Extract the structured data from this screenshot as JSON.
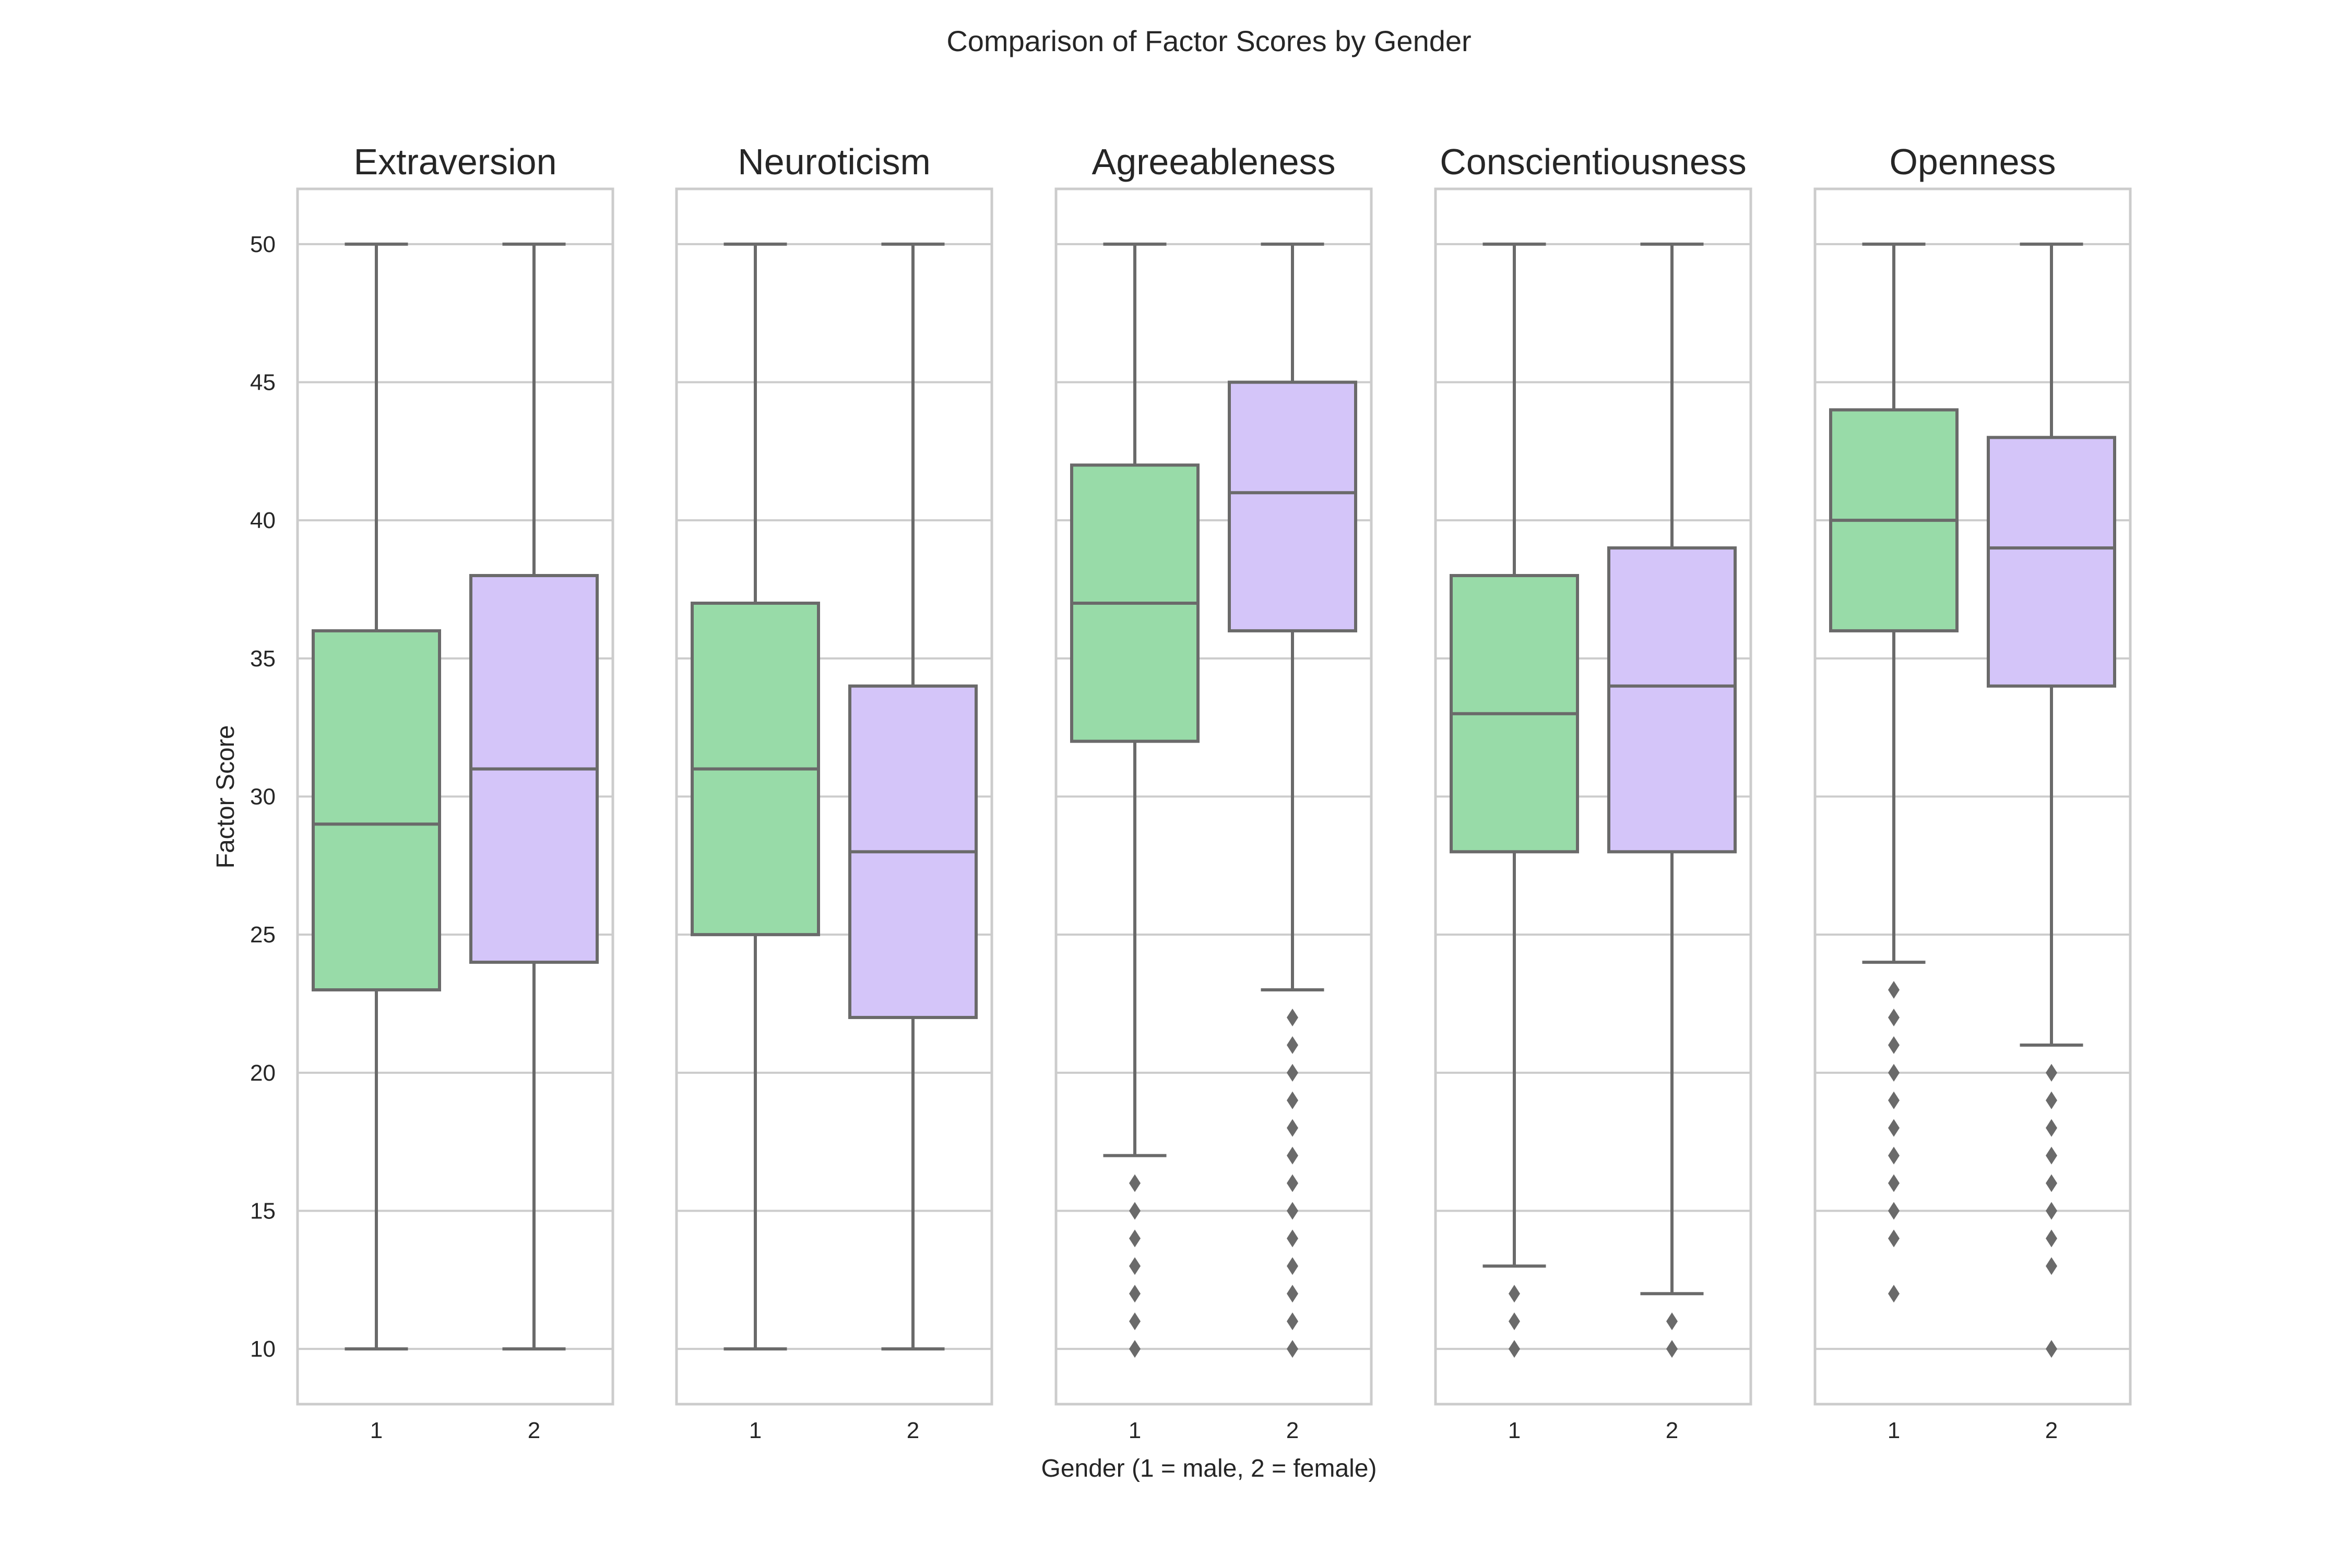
{
  "figure": {
    "title": "Comparison of Factor Scores by Gender"
  },
  "chart_data": {
    "type": "box",
    "title": "Comparison of Factor Scores by Gender",
    "xlabel": "Gender (1 = male, 2 = female)",
    "ylabel": "Factor Score",
    "ylim": [
      8,
      52
    ],
    "yticks": [
      10,
      15,
      20,
      25,
      30,
      35,
      40,
      45,
      50
    ],
    "categories": [
      "1",
      "2"
    ],
    "grid": true,
    "colors": {
      "1": "#98dba8",
      "2": "#d4c5f9",
      "line": "#6a6a6a"
    },
    "panels": [
      {
        "name": "Extraversion",
        "boxes": [
          {
            "category": "1",
            "whisker_low": 10,
            "q1": 23,
            "median": 29,
            "q3": 36,
            "whisker_high": 50,
            "outliers": []
          },
          {
            "category": "2",
            "whisker_low": 10,
            "q1": 24,
            "median": 31,
            "q3": 38,
            "whisker_high": 50,
            "outliers": []
          }
        ]
      },
      {
        "name": "Neuroticism",
        "boxes": [
          {
            "category": "1",
            "whisker_low": 10,
            "q1": 25,
            "median": 31,
            "q3": 37,
            "whisker_high": 50,
            "outliers": []
          },
          {
            "category": "2",
            "whisker_low": 10,
            "q1": 22,
            "median": 28,
            "q3": 34,
            "whisker_high": 50,
            "outliers": []
          }
        ]
      },
      {
        "name": "Agreeableness",
        "boxes": [
          {
            "category": "1",
            "whisker_low": 17,
            "q1": 32,
            "median": 37,
            "q3": 42,
            "whisker_high": 50,
            "outliers": [
              10,
              11,
              12,
              13,
              14,
              15,
              16
            ]
          },
          {
            "category": "2",
            "whisker_low": 23,
            "q1": 36,
            "median": 41,
            "q3": 45,
            "whisker_high": 50,
            "outliers": [
              10,
              11,
              12,
              13,
              14,
              15,
              16,
              17,
              18,
              19,
              20,
              21,
              22
            ]
          }
        ]
      },
      {
        "name": "Conscientiousness",
        "boxes": [
          {
            "category": "1",
            "whisker_low": 13,
            "q1": 28,
            "median": 33,
            "q3": 38,
            "whisker_high": 50,
            "outliers": [
              10,
              11,
              12
            ]
          },
          {
            "category": "2",
            "whisker_low": 12,
            "q1": 28,
            "median": 34,
            "q3": 39,
            "whisker_high": 50,
            "outliers": [
              10,
              11
            ]
          }
        ]
      },
      {
        "name": "Openness",
        "boxes": [
          {
            "category": "1",
            "whisker_low": 24,
            "q1": 36,
            "median": 40,
            "q3": 44,
            "whisker_high": 50,
            "outliers": [
              12,
              14,
              15,
              16,
              17,
              18,
              19,
              20,
              21,
              22,
              23
            ]
          },
          {
            "category": "2",
            "whisker_low": 21,
            "q1": 34,
            "median": 39,
            "q3": 43,
            "whisker_high": 50,
            "outliers": [
              10,
              13,
              14,
              15,
              16,
              17,
              18,
              19,
              20
            ]
          }
        ]
      }
    ]
  }
}
